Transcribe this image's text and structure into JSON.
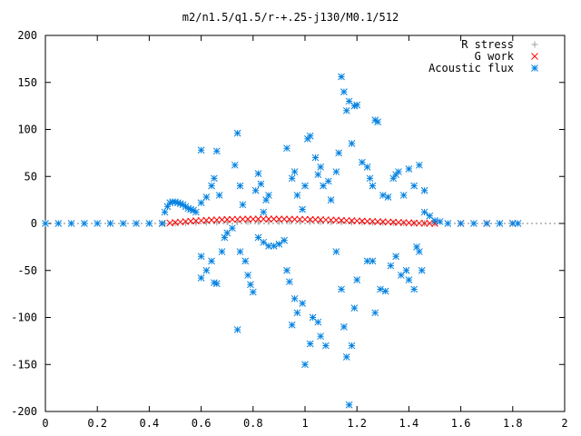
{
  "chart_data": {
    "type": "scatter",
    "title": "m2/n1.5/q1.5/r-+.25-j130/M0.1/512",
    "xlabel": "",
    "ylabel": "",
    "xlim": [
      0,
      2
    ],
    "ylim": [
      -200,
      200
    ],
    "x_ticks": [
      0,
      0.2,
      0.4,
      0.6,
      0.8,
      1,
      1.2,
      1.4,
      1.6,
      1.8,
      2
    ],
    "x_tick_labels": [
      "0",
      "0.2",
      "0.4",
      "0.6",
      "0.8",
      "1",
      "1.2",
      "1.4",
      "1.6",
      "1.8",
      "2"
    ],
    "y_ticks": [
      200,
      150,
      100,
      50,
      0,
      -50,
      -100,
      -150,
      -200
    ],
    "y_tick_labels": [
      "200",
      "150",
      "100",
      "50",
      "0",
      "-50",
      "-100",
      "-150",
      "-200"
    ],
    "grid": false,
    "legend_position": "top-right",
    "series": [
      {
        "name": "R stress",
        "marker": "plus",
        "color": "#a0a0a0",
        "points": [
          [
            0.46,
            0
          ],
          [
            0.5,
            0.3
          ],
          [
            0.54,
            0.6
          ],
          [
            0.58,
            0.8
          ],
          [
            0.62,
            1.0
          ],
          [
            0.66,
            1.2
          ],
          [
            0.7,
            1.4
          ],
          [
            0.74,
            1.5
          ],
          [
            0.78,
            1.7
          ],
          [
            0.82,
            1.8
          ],
          [
            0.86,
            1.9
          ],
          [
            0.9,
            2.0
          ],
          [
            0.94,
            2.0
          ],
          [
            0.98,
            2.0
          ],
          [
            1.02,
            1.9
          ],
          [
            1.06,
            1.8
          ],
          [
            1.1,
            1.7
          ],
          [
            1.14,
            1.5
          ],
          [
            1.18,
            1.3
          ],
          [
            1.22,
            1.1
          ],
          [
            1.26,
            0.9
          ],
          [
            1.3,
            0.7
          ],
          [
            1.34,
            0.5
          ],
          [
            1.38,
            0.3
          ],
          [
            1.42,
            0.2
          ],
          [
            1.46,
            0.1
          ],
          [
            1.5,
            0
          ]
        ]
      },
      {
        "name": "G work",
        "marker": "cross",
        "color": "#ff0000",
        "points": [
          [
            0.45,
            0
          ],
          [
            0.48,
            0.5
          ],
          [
            0.5,
            1.0
          ],
          [
            0.52,
            1.5
          ],
          [
            0.54,
            2.0
          ],
          [
            0.56,
            2.4
          ],
          [
            0.58,
            2.8
          ],
          [
            0.6,
            3.1
          ],
          [
            0.62,
            3.4
          ],
          [
            0.64,
            3.6
          ],
          [
            0.66,
            3.8
          ],
          [
            0.68,
            4.0
          ],
          [
            0.7,
            4.2
          ],
          [
            0.72,
            4.3
          ],
          [
            0.74,
            4.4
          ],
          [
            0.76,
            4.5
          ],
          [
            0.78,
            4.6
          ],
          [
            0.8,
            4.6
          ],
          [
            0.82,
            4.7
          ],
          [
            0.84,
            4.7
          ],
          [
            0.86,
            4.7
          ],
          [
            0.88,
            4.7
          ],
          [
            0.9,
            4.6
          ],
          [
            0.92,
            4.6
          ],
          [
            0.94,
            4.5
          ],
          [
            0.96,
            4.5
          ],
          [
            0.98,
            4.4
          ],
          [
            1.0,
            4.3
          ],
          [
            1.02,
            4.2
          ],
          [
            1.04,
            4.1
          ],
          [
            1.06,
            4.0
          ],
          [
            1.08,
            3.8
          ],
          [
            1.1,
            3.7
          ],
          [
            1.12,
            3.5
          ],
          [
            1.14,
            3.3
          ],
          [
            1.16,
            3.1
          ],
          [
            1.18,
            2.9
          ],
          [
            1.2,
            2.7
          ],
          [
            1.22,
            2.5
          ],
          [
            1.24,
            2.3
          ],
          [
            1.26,
            2.1
          ],
          [
            1.28,
            1.9
          ],
          [
            1.3,
            1.7
          ],
          [
            1.32,
            1.5
          ],
          [
            1.34,
            1.3
          ],
          [
            1.36,
            1.1
          ],
          [
            1.38,
            0.9
          ],
          [
            1.4,
            0.7
          ],
          [
            1.42,
            0.5
          ],
          [
            1.44,
            0.3
          ],
          [
            1.46,
            0.2
          ],
          [
            1.48,
            0.1
          ],
          [
            1.5,
            0
          ],
          [
            1.6,
            0
          ],
          [
            1.7,
            0
          ],
          [
            1.8,
            0
          ]
        ]
      },
      {
        "name": "Acoustic flux",
        "marker": "star",
        "color": "#0080e0",
        "points": [
          [
            0.46,
            12
          ],
          [
            0.47,
            18
          ],
          [
            0.48,
            22
          ],
          [
            0.49,
            23
          ],
          [
            0.5,
            23
          ],
          [
            0.51,
            22
          ],
          [
            0.52,
            21
          ],
          [
            0.53,
            20
          ],
          [
            0.54,
            18
          ],
          [
            0.55,
            16
          ],
          [
            0.56,
            15
          ],
          [
            0.57,
            14
          ],
          [
            0.58,
            12
          ],
          [
            0.6,
            78
          ],
          [
            0.64,
            40
          ],
          [
            0.66,
            77
          ],
          [
            0.62,
            28
          ],
          [
            0.6,
            22
          ],
          [
            0.65,
            48
          ],
          [
            0.67,
            30
          ],
          [
            0.6,
            -35
          ],
          [
            0.6,
            -58
          ],
          [
            0.62,
            -50
          ],
          [
            0.64,
            -40
          ],
          [
            0.65,
            -63
          ],
          [
            0.66,
            -64
          ],
          [
            0.68,
            -30
          ],
          [
            0.69,
            -15
          ],
          [
            0.7,
            -10
          ],
          [
            0.72,
            -5
          ],
          [
            0.73,
            62
          ],
          [
            0.74,
            96
          ],
          [
            0.75,
            40
          ],
          [
            0.76,
            20
          ],
          [
            0.74,
            -113
          ],
          [
            0.75,
            -30
          ],
          [
            0.77,
            -40
          ],
          [
            0.78,
            -55
          ],
          [
            0.79,
            -65
          ],
          [
            0.8,
            -73
          ],
          [
            0.81,
            35
          ],
          [
            0.82,
            53
          ],
          [
            0.83,
            42
          ],
          [
            0.84,
            12
          ],
          [
            0.85,
            25
          ],
          [
            0.86,
            30
          ],
          [
            0.82,
            -15
          ],
          [
            0.84,
            -20
          ],
          [
            0.86,
            -24
          ],
          [
            0.88,
            -24
          ],
          [
            0.9,
            -22
          ],
          [
            0.92,
            -18
          ],
          [
            0.93,
            80
          ],
          [
            0.95,
            48
          ],
          [
            0.96,
            55
          ],
          [
            0.97,
            30
          ],
          [
            0.99,
            15
          ],
          [
            1.0,
            40
          ],
          [
            0.93,
            -50
          ],
          [
            0.94,
            -62
          ],
          [
            0.96,
            -80
          ],
          [
            0.95,
            -108
          ],
          [
            0.97,
            -95
          ],
          [
            0.99,
            -85
          ],
          [
            1.01,
            90
          ],
          [
            1.02,
            93
          ],
          [
            1.04,
            70
          ],
          [
            1.05,
            52
          ],
          [
            1.06,
            60
          ],
          [
            1.07,
            40
          ],
          [
            1.09,
            45
          ],
          [
            1.0,
            -150
          ],
          [
            1.02,
            -128
          ],
          [
            1.03,
            -100
          ],
          [
            1.05,
            -105
          ],
          [
            1.06,
            -120
          ],
          [
            1.08,
            -130
          ],
          [
            1.1,
            25
          ],
          [
            1.12,
            55
          ],
          [
            1.13,
            75
          ],
          [
            1.14,
            156
          ],
          [
            1.15,
            140
          ],
          [
            1.16,
            120
          ],
          [
            1.17,
            130
          ],
          [
            1.18,
            85
          ],
          [
            1.19,
            125
          ],
          [
            1.2,
            126
          ],
          [
            1.12,
            -30
          ],
          [
            1.14,
            -70
          ],
          [
            1.15,
            -110
          ],
          [
            1.16,
            -142
          ],
          [
            1.17,
            -193
          ],
          [
            1.18,
            -130
          ],
          [
            1.19,
            -90
          ],
          [
            1.2,
            -60
          ],
          [
            1.22,
            65
          ],
          [
            1.24,
            60
          ],
          [
            1.25,
            48
          ],
          [
            1.26,
            40
          ],
          [
            1.27,
            110
          ],
          [
            1.28,
            108
          ],
          [
            1.3,
            30
          ],
          [
            1.32,
            28
          ],
          [
            1.34,
            48
          ],
          [
            1.35,
            52
          ],
          [
            1.36,
            55
          ],
          [
            1.38,
            30
          ],
          [
            1.24,
            -40
          ],
          [
            1.26,
            -40
          ],
          [
            1.27,
            -95
          ],
          [
            1.29,
            -70
          ],
          [
            1.31,
            -72
          ],
          [
            1.33,
            -45
          ],
          [
            1.35,
            -35
          ],
          [
            1.37,
            -55
          ],
          [
            1.39,
            -50
          ],
          [
            1.4,
            -60
          ],
          [
            1.42,
            -70
          ],
          [
            1.43,
            -25
          ],
          [
            1.44,
            -30
          ],
          [
            1.45,
            -50
          ],
          [
            1.4,
            58
          ],
          [
            1.42,
            40
          ],
          [
            1.44,
            62
          ],
          [
            1.46,
            35
          ],
          [
            1.46,
            12
          ],
          [
            1.48,
            8
          ],
          [
            1.5,
            3
          ],
          [
            1.52,
            2
          ],
          [
            0.0,
            0
          ],
          [
            0.05,
            0
          ],
          [
            0.1,
            0
          ],
          [
            0.15,
            0
          ],
          [
            0.2,
            0
          ],
          [
            0.25,
            0
          ],
          [
            0.3,
            0
          ],
          [
            0.35,
            0
          ],
          [
            0.4,
            0
          ],
          [
            0.45,
            0
          ],
          [
            1.55,
            0
          ],
          [
            1.6,
            0
          ],
          [
            1.65,
            0
          ],
          [
            1.7,
            0
          ],
          [
            1.75,
            0
          ],
          [
            1.8,
            0
          ],
          [
            1.82,
            0
          ]
        ]
      }
    ]
  }
}
